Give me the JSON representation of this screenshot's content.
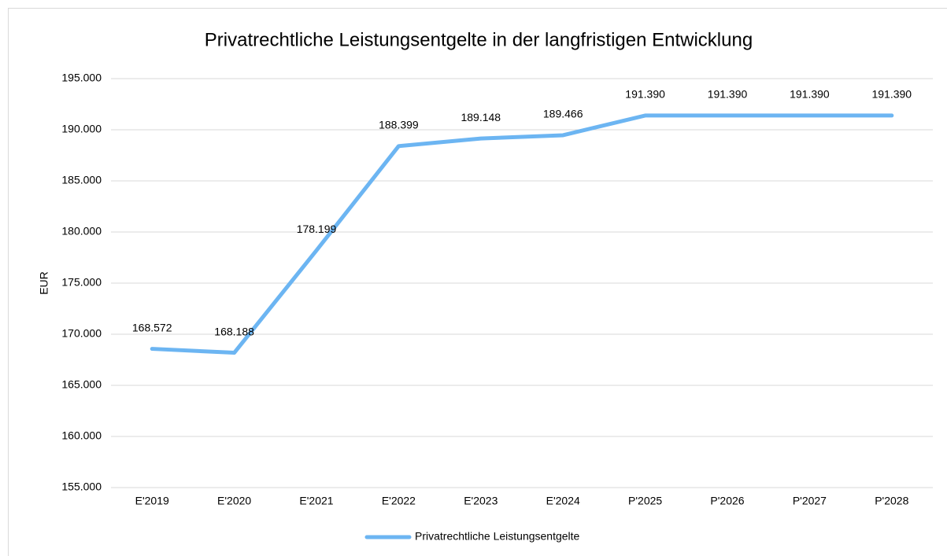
{
  "chart_data": {
    "type": "line",
    "title": "Privatrechtliche Leistungsentgelte in der langfristigen Entwicklung",
    "y_label": "EUR",
    "categories": [
      "E'2019",
      "E'2020",
      "E'2021",
      "E'2022",
      "E'2023",
      "E'2024",
      "P'2025",
      "P'2026",
      "P'2027",
      "P'2028"
    ],
    "series": [
      {
        "name": "Privatrechtliche Leistungsentgelte",
        "color": "#6cb5f2",
        "values": [
          168572,
          168188,
          178199,
          188399,
          189148,
          189466,
          191390,
          191390,
          191390,
          191390
        ],
        "value_labels": [
          "168.572",
          "168.188",
          "178.199",
          "188.399",
          "189.148",
          "189.466",
          "191.390",
          "191.390",
          "191.390",
          "191.390"
        ]
      }
    ],
    "ylim": [
      155000,
      195000
    ],
    "yticks": [
      {
        "value": 155000,
        "label": "155.000"
      },
      {
        "value": 160000,
        "label": "160.000"
      },
      {
        "value": 165000,
        "label": "165.000"
      },
      {
        "value": 170000,
        "label": "170.000"
      },
      {
        "value": 175000,
        "label": "175.000"
      },
      {
        "value": 180000,
        "label": "180.000"
      },
      {
        "value": 185000,
        "label": "185.000"
      },
      {
        "value": 190000,
        "label": "190.000"
      },
      {
        "value": 195000,
        "label": "195.000"
      }
    ],
    "grid": true,
    "legend": "bottom"
  }
}
